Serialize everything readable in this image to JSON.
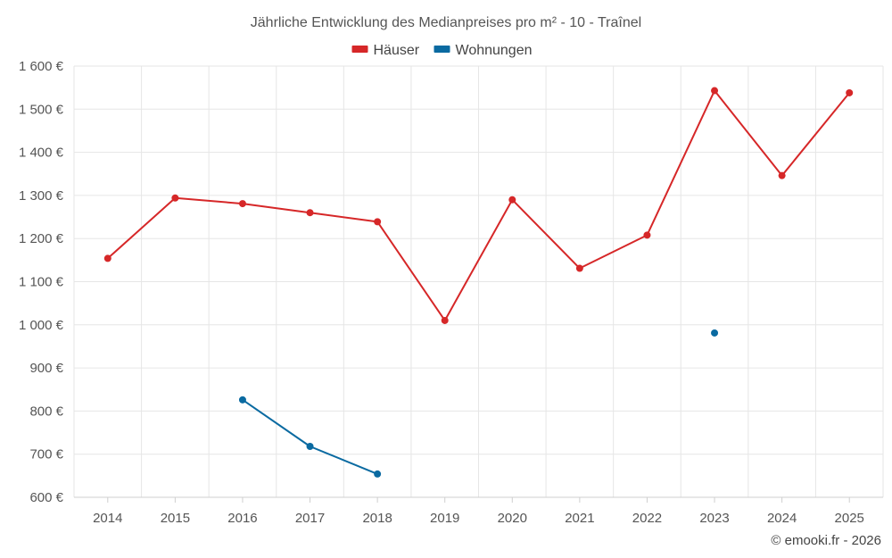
{
  "chart_data": {
    "type": "line",
    "title": "Jährliche Entwicklung des Medianpreises pro m² - 10 - Traînel",
    "categories": [
      "2014",
      "2015",
      "2016",
      "2017",
      "2018",
      "2019",
      "2020",
      "2021",
      "2022",
      "2023",
      "2024",
      "2025"
    ],
    "series": [
      {
        "name": "Häuser",
        "color": "#d62728",
        "values": [
          1154,
          1294,
          1281,
          1260,
          1239,
          1010,
          1290,
          1131,
          1208,
          1543,
          1346,
          1538
        ]
      },
      {
        "name": "Wohnungen",
        "color": "#0a6aa1",
        "values": [
          null,
          null,
          826,
          718,
          654,
          null,
          null,
          null,
          null,
          981,
          null,
          null
        ]
      }
    ],
    "ylim": [
      600,
      1600
    ],
    "y_ticks": [
      600,
      700,
      800,
      900,
      1000,
      1100,
      1200,
      1300,
      1400,
      1500,
      1600
    ],
    "y_tick_labels": [
      "600 €",
      "700 €",
      "800 €",
      "900 €",
      "1 000 €",
      "1 100 €",
      "1 200 €",
      "1 300 €",
      "1 400 €",
      "1 500 €",
      "1 600 €"
    ],
    "xlabel": "",
    "ylabel": "",
    "legend_position": "top-center",
    "grid": true
  },
  "credit": "© emooki.fr - 2026"
}
